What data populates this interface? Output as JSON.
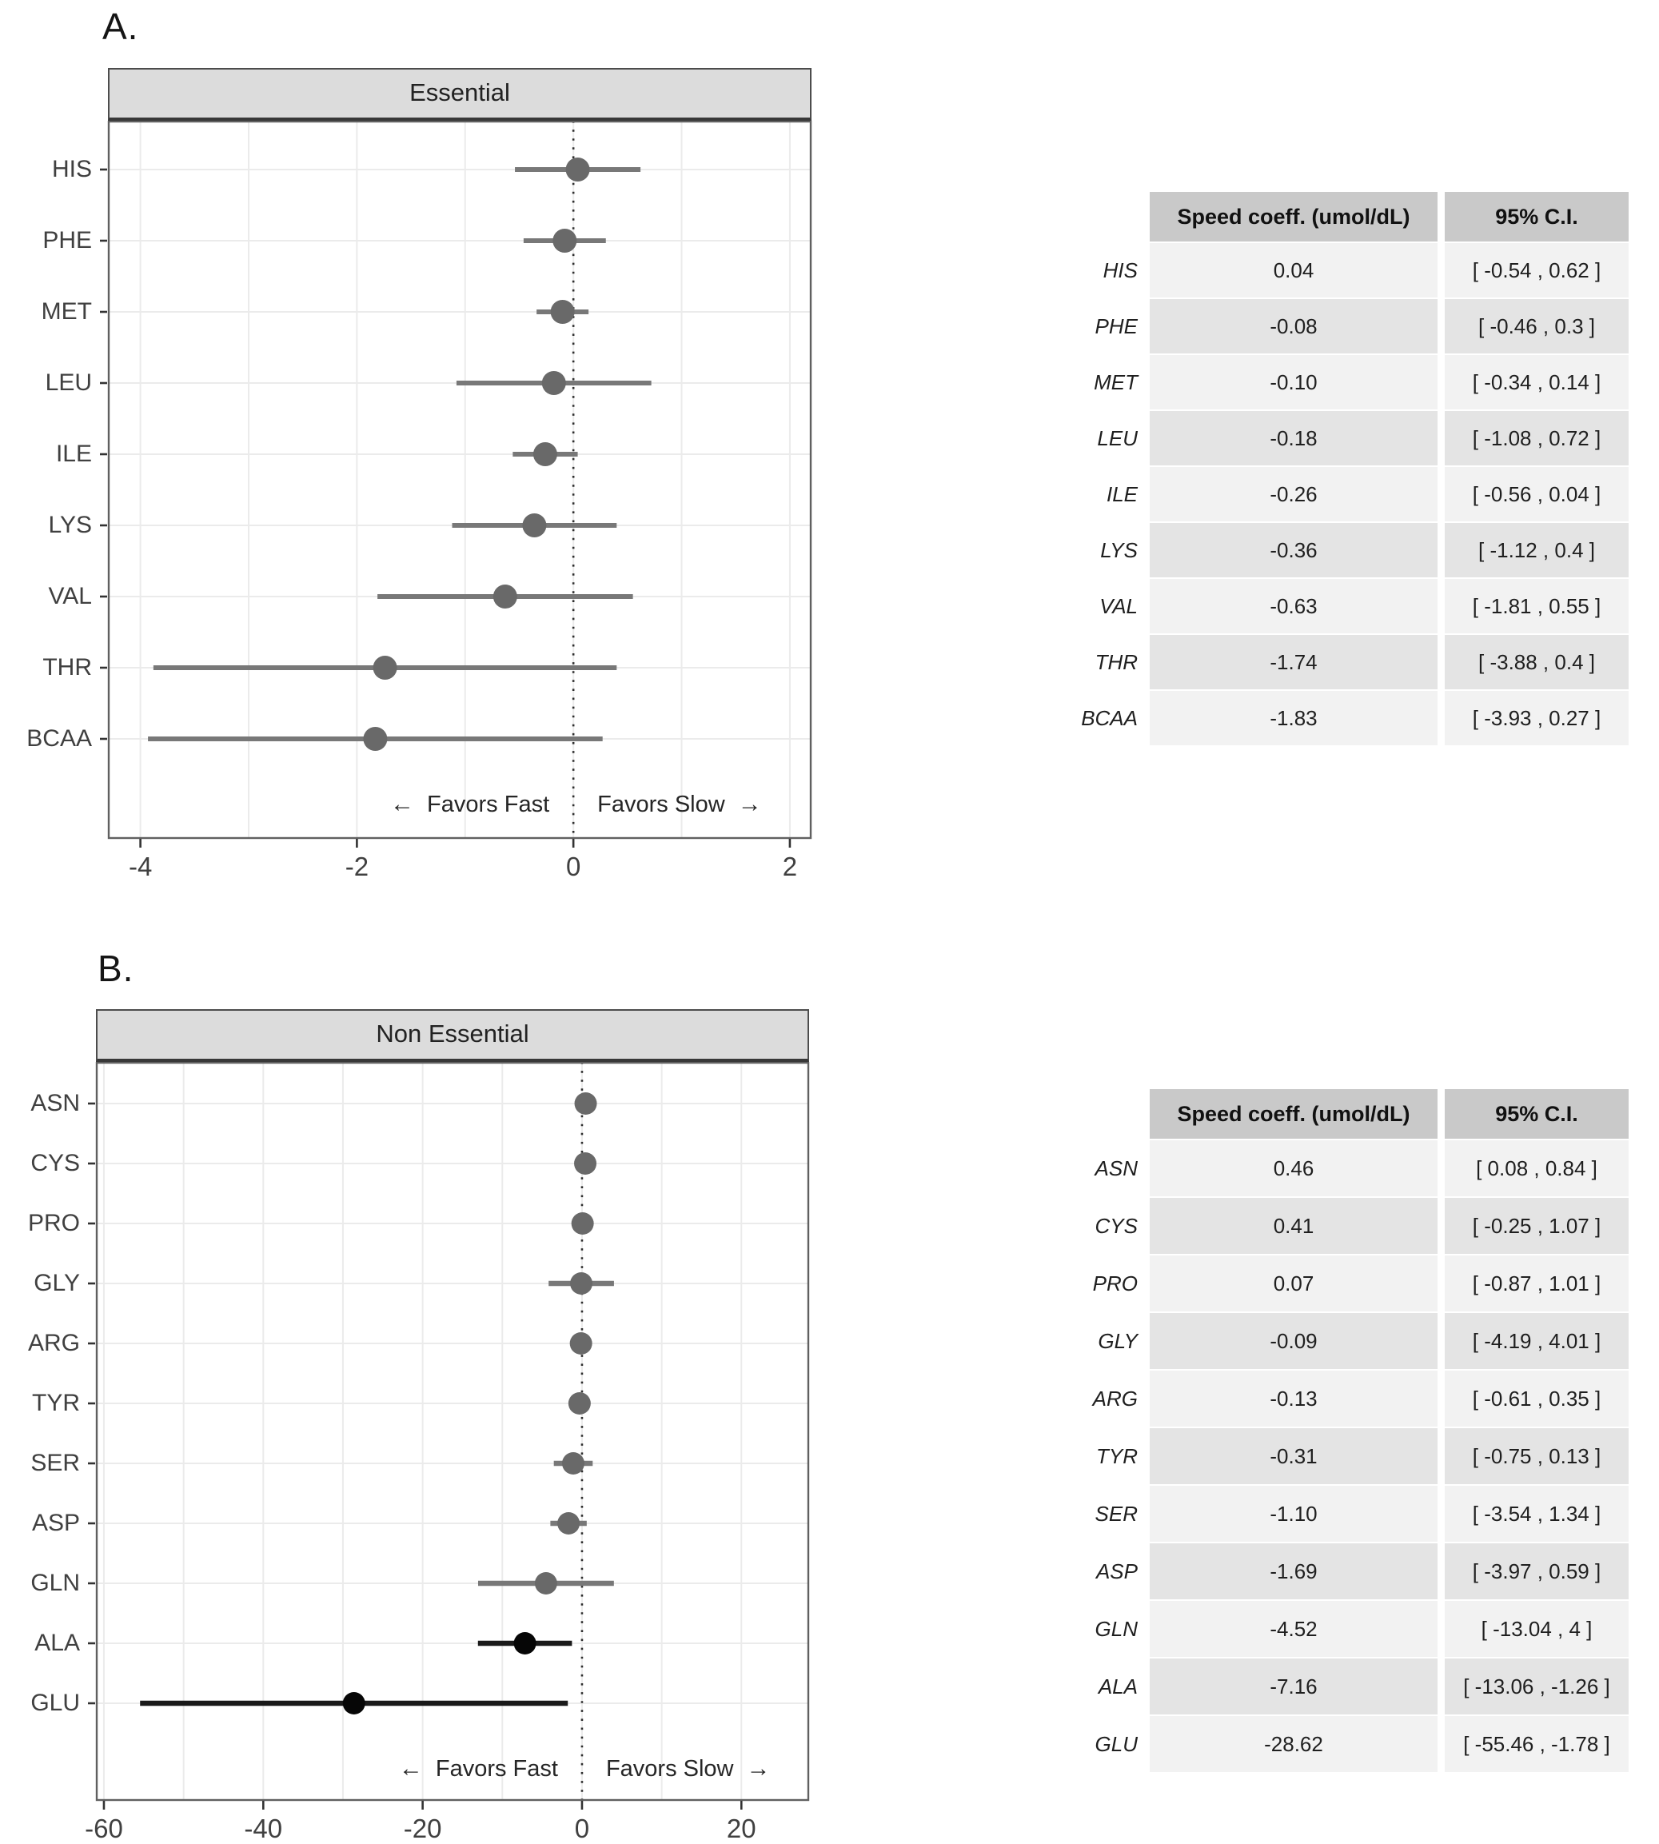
{
  "colors": {
    "point_gray": "#696969",
    "line_gray": "#787878",
    "point_black": "#060606",
    "line_black": "#1a1a1a",
    "strip_bg": "#dcdcdc",
    "grid": "#ebebeb",
    "frame": "#606060",
    "tick": "#333333",
    "zero_line": "#2e2e2e",
    "table_header_bg": "#c9c9c9",
    "row_light": "#f2f2f2",
    "row_dark": "#e4e4e4"
  },
  "chart_data": [
    {
      "type": "scatter",
      "subtype": "forest-plot",
      "panel_label": "A.",
      "title": "Essential",
      "categories": [
        "HIS",
        "PHE",
        "MET",
        "LEU",
        "ILE",
        "LYS",
        "VAL",
        "THR",
        "BCAA"
      ],
      "values": [
        0.04,
        -0.08,
        -0.1,
        -0.18,
        -0.26,
        -0.36,
        -0.63,
        -1.74,
        -1.83
      ],
      "ci_low": [
        -0.54,
        -0.46,
        -0.34,
        -1.08,
        -0.56,
        -1.12,
        -1.81,
        -3.88,
        -3.93
      ],
      "ci_high": [
        0.62,
        0.3,
        0.14,
        0.72,
        0.04,
        0.4,
        0.55,
        0.4,
        0.27
      ],
      "significant": [
        false,
        false,
        false,
        false,
        false,
        false,
        false,
        false,
        false
      ],
      "xlim": [
        -4.3,
        2.2
      ],
      "x_ticks": [
        -4,
        -2,
        0,
        2
      ],
      "grid_step": 1,
      "zero_line": 0,
      "xlabel": "",
      "ylabel": "",
      "legend_position": "none",
      "grid_on": true,
      "annotation_left": "Favors Fast",
      "annotation_right": "Favors Slow",
      "arrow_left_icon": "←",
      "arrow_right_icon": "→"
    },
    {
      "type": "scatter",
      "subtype": "forest-plot",
      "panel_label": "B.",
      "title": "Non Essential",
      "categories": [
        "ASN",
        "CYS",
        "PRO",
        "GLY",
        "ARG",
        "TYR",
        "SER",
        "ASP",
        "GLN",
        "ALA",
        "GLU"
      ],
      "values": [
        0.46,
        0.41,
        0.07,
        -0.09,
        -0.13,
        -0.31,
        -1.1,
        -1.69,
        -4.52,
        -7.16,
        -28.62
      ],
      "ci_low": [
        0.08,
        -0.25,
        -0.87,
        -4.19,
        -0.61,
        -0.75,
        -3.54,
        -3.97,
        -13.04,
        -13.06,
        -55.46
      ],
      "ci_high": [
        0.84,
        1.07,
        1.01,
        4.01,
        0.35,
        0.13,
        1.34,
        0.59,
        4,
        -1.26,
        -1.78
      ],
      "significant": [
        false,
        false,
        false,
        false,
        false,
        false,
        false,
        false,
        false,
        true,
        true
      ],
      "xlim": [
        -61,
        28.5
      ],
      "x_ticks": [
        -60,
        -40,
        -20,
        0,
        20
      ],
      "grid_step": 10,
      "zero_line": 0,
      "xlabel": "",
      "ylabel": "",
      "legend_position": "none",
      "grid_on": true,
      "annotation_left": "Favors Fast",
      "annotation_right": "Favors Slow",
      "arrow_left_icon": "←",
      "arrow_right_icon": "→"
    }
  ],
  "tables": [
    {
      "panel": "A",
      "col_headers": [
        "Speed coeff. (umol/dL)",
        "95% C.I."
      ],
      "rows": [
        {
          "label": "HIS",
          "coeff": "0.04",
          "ci": "[ -0.54 ,  0.62 ]"
        },
        {
          "label": "PHE",
          "coeff": "-0.08",
          "ci": "[ -0.46 ,  0.3 ]"
        },
        {
          "label": "MET",
          "coeff": "-0.10",
          "ci": "[ -0.34 ,  0.14 ]"
        },
        {
          "label": "LEU",
          "coeff": "-0.18",
          "ci": "[ -1.08 ,  0.72 ]"
        },
        {
          "label": "ILE",
          "coeff": "-0.26",
          "ci": "[ -0.56 ,  0.04 ]"
        },
        {
          "label": "LYS",
          "coeff": "-0.36",
          "ci": "[ -1.12 ,  0.4 ]"
        },
        {
          "label": "VAL",
          "coeff": "-0.63",
          "ci": "[ -1.81 ,  0.55 ]"
        },
        {
          "label": "THR",
          "coeff": "-1.74",
          "ci": "[ -3.88 ,  0.4 ]"
        },
        {
          "label": "BCAA",
          "coeff": "-1.83",
          "ci": "[ -3.93 ,  0.27 ]"
        }
      ]
    },
    {
      "panel": "B",
      "col_headers": [
        "Speed coeff. (umol/dL)",
        "95% C.I."
      ],
      "rows": [
        {
          "label": "ASN",
          "coeff": "0.46",
          "ci": "[ 0.08 ,  0.84 ]"
        },
        {
          "label": "CYS",
          "coeff": "0.41",
          "ci": "[ -0.25 ,  1.07 ]"
        },
        {
          "label": "PRO",
          "coeff": "0.07",
          "ci": "[ -0.87 ,  1.01 ]"
        },
        {
          "label": "GLY",
          "coeff": "-0.09",
          "ci": "[ -4.19 ,  4.01 ]"
        },
        {
          "label": "ARG",
          "coeff": "-0.13",
          "ci": "[ -0.61 ,  0.35 ]"
        },
        {
          "label": "TYR",
          "coeff": "-0.31",
          "ci": "[ -0.75 ,  0.13 ]"
        },
        {
          "label": "SER",
          "coeff": "-1.10",
          "ci": "[ -3.54 ,  1.34 ]"
        },
        {
          "label": "ASP",
          "coeff": "-1.69",
          "ci": "[ -3.97 ,  0.59 ]"
        },
        {
          "label": "GLN",
          "coeff": "-4.52",
          "ci": "[ -13.04 ,  4 ]"
        },
        {
          "label": "ALA",
          "coeff": "-7.16",
          "ci": "[ -13.06 ,  -1.26 ]"
        },
        {
          "label": "GLU",
          "coeff": "-28.62",
          "ci": "[ -55.46 ,  -1.78 ]"
        }
      ]
    }
  ]
}
